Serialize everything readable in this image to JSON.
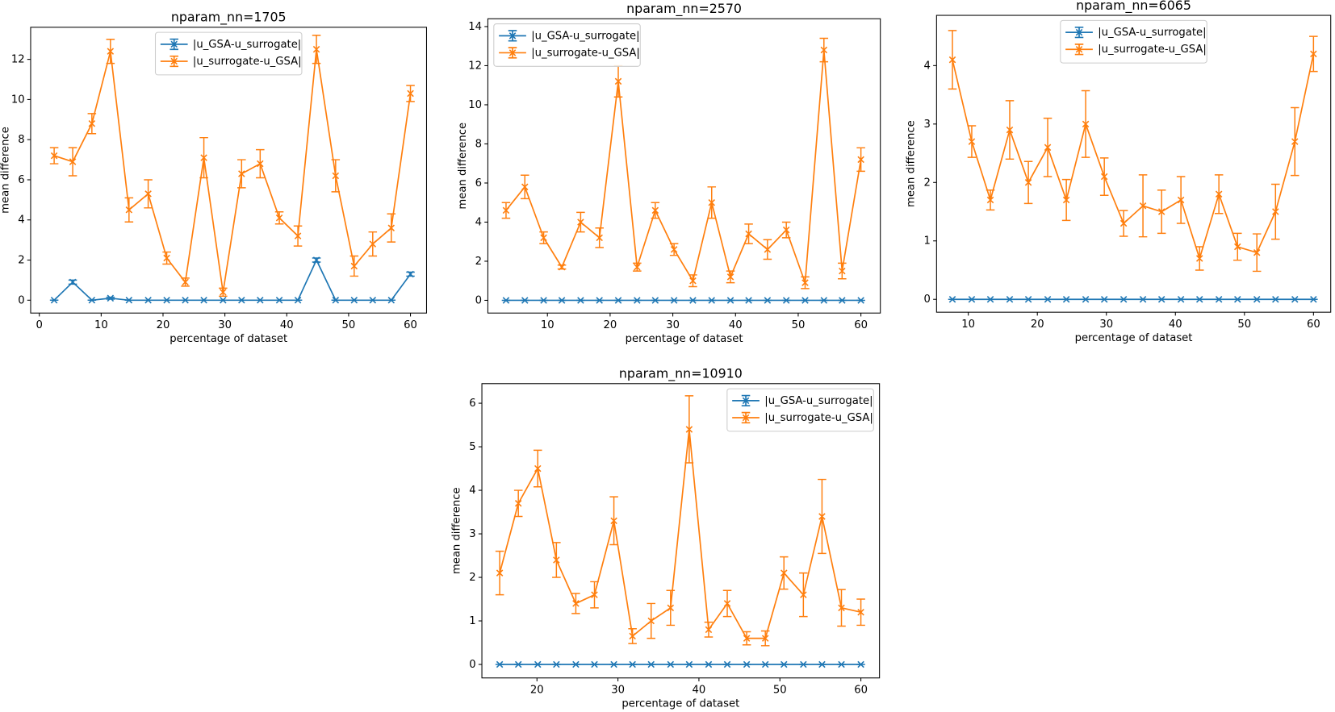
{
  "chart_data": [
    {
      "type": "line",
      "title": "nparam_nn=1705",
      "xlabel": "percentage of dataset",
      "ylabel": "mean difference",
      "x": [
        2.4,
        5.4,
        8.5,
        11.5,
        14.5,
        17.6,
        20.6,
        23.6,
        26.6,
        29.7,
        32.7,
        35.7,
        38.8,
        41.8,
        44.8,
        47.9,
        50.9,
        53.9,
        56.9,
        60.0
      ],
      "series": [
        {
          "name": "|u_GSA-u_surrogate|",
          "color": "#1f77b4",
          "values": [
            0,
            0.9,
            0,
            0.1,
            0,
            0,
            0,
            0,
            0,
            0,
            0,
            0,
            0,
            0,
            2.0,
            0,
            0,
            0,
            0,
            1.3
          ],
          "errors": [
            0,
            0.1,
            0,
            0.05,
            0,
            0,
            0,
            0,
            0,
            0,
            0,
            0,
            0,
            0,
            0.1,
            0,
            0,
            0,
            0,
            0.1
          ]
        },
        {
          "name": "|u_surrogate-u_GSA|",
          "color": "#ff7f0e",
          "values": [
            7.2,
            6.9,
            8.8,
            12.4,
            4.5,
            5.3,
            2.1,
            0.9,
            7.1,
            0.4,
            6.3,
            6.8,
            4.1,
            3.2,
            12.5,
            6.2,
            1.7,
            2.8,
            3.6,
            10.3
          ],
          "errors": [
            0.4,
            0.7,
            0.5,
            0.6,
            0.6,
            0.7,
            0.3,
            0.2,
            1.0,
            0.2,
            0.7,
            0.7,
            0.3,
            0.5,
            0.7,
            0.8,
            0.5,
            0.6,
            0.7,
            0.4
          ]
        }
      ],
      "xlim": [
        -1.4,
        62.6
      ],
      "ylim": [
        -0.64,
        13.6
      ],
      "xticks": [
        0,
        10,
        20,
        30,
        40,
        50,
        60
      ],
      "yticks": [
        0,
        2,
        4,
        6,
        8,
        10,
        12
      ],
      "legend": "upper center"
    },
    {
      "type": "line",
      "title": "nparam_nn=2570",
      "xlabel": "percentage of dataset",
      "ylabel": "mean difference",
      "x": [
        3.4,
        6.4,
        9.4,
        12.3,
        15.3,
        18.3,
        21.3,
        24.3,
        27.2,
        30.2,
        33.2,
        36.2,
        39.2,
        42.1,
        45.1,
        48.1,
        51.1,
        54.1,
        57.0,
        60.0
      ],
      "series": [
        {
          "name": "|u_GSA-u_surrogate|",
          "color": "#1f77b4",
          "values": [
            0,
            0,
            0,
            0,
            0,
            0,
            0,
            0,
            0,
            0,
            0,
            0,
            0,
            0,
            0,
            0,
            0,
            0,
            0,
            0
          ],
          "errors": [
            0,
            0,
            0,
            0,
            0,
            0,
            0,
            0,
            0,
            0,
            0,
            0,
            0,
            0,
            0,
            0,
            0,
            0,
            0,
            0
          ]
        },
        {
          "name": "|u_surrogate-u_GSA|",
          "color": "#ff7f0e",
          "values": [
            4.6,
            5.8,
            3.2,
            1.7,
            4.0,
            3.2,
            11.2,
            1.7,
            4.6,
            2.6,
            1.0,
            5.0,
            1.2,
            3.4,
            2.6,
            3.6,
            0.9,
            12.8,
            1.5,
            7.2
          ],
          "errors": [
            0.4,
            0.6,
            0.3,
            0.1,
            0.5,
            0.5,
            0.8,
            0.2,
            0.4,
            0.3,
            0.3,
            0.8,
            0.3,
            0.5,
            0.5,
            0.4,
            0.3,
            0.6,
            0.4,
            0.6
          ]
        }
      ],
      "xlim": [
        0.5,
        63.1
      ],
      "ylim": [
        -0.65,
        14.4
      ],
      "xticks": [
        10,
        20,
        30,
        40,
        50,
        60
      ],
      "yticks": [
        0,
        2,
        4,
        6,
        8,
        10,
        12,
        14
      ],
      "legend": "upper left"
    },
    {
      "type": "line",
      "title": "nparam_nn=6065",
      "xlabel": "percentage of dataset",
      "ylabel": "mean difference",
      "x": [
        7.7,
        10.5,
        13.2,
        16.0,
        18.7,
        21.5,
        24.2,
        27.0,
        29.7,
        32.5,
        35.3,
        38.0,
        40.8,
        43.5,
        46.3,
        49.0,
        51.8,
        54.5,
        57.3,
        60.0
      ],
      "series": [
        {
          "name": "|u_GSA-u_surrogate|",
          "color": "#1f77b4",
          "values": [
            0,
            0,
            0,
            0,
            0,
            0,
            0,
            0,
            0,
            0,
            0,
            0,
            0,
            0,
            0,
            0,
            0,
            0,
            0,
            0
          ],
          "errors": [
            0,
            0,
            0,
            0,
            0,
            0,
            0,
            0,
            0,
            0,
            0,
            0,
            0,
            0,
            0,
            0,
            0,
            0,
            0,
            0
          ]
        },
        {
          "name": "|u_surrogate-u_GSA|",
          "color": "#ff7f0e",
          "values": [
            4.1,
            2.7,
            1.7,
            2.9,
            2.0,
            2.6,
            1.7,
            3.0,
            2.1,
            1.3,
            1.6,
            1.5,
            1.7,
            0.7,
            1.8,
            0.9,
            0.8,
            1.5,
            2.7,
            4.2
          ],
          "errors": [
            0.5,
            0.27,
            0.17,
            0.5,
            0.36,
            0.5,
            0.35,
            0.57,
            0.32,
            0.22,
            0.53,
            0.37,
            0.4,
            0.2,
            0.33,
            0.23,
            0.32,
            0.47,
            0.58,
            0.3
          ]
        }
      ],
      "xlim": [
        5.4,
        62.5
      ],
      "ylim": [
        -0.22,
        4.86
      ],
      "xticks": [
        10,
        20,
        30,
        40,
        50,
        60
      ],
      "yticks": [
        0,
        1,
        2,
        3,
        4
      ],
      "legend": "upper center"
    },
    {
      "type": "line",
      "title": "nparam_nn=10910",
      "xlabel": "percentage of dataset",
      "ylabel": "mean difference",
      "x": [
        15.4,
        17.7,
        20.1,
        22.4,
        24.8,
        27.1,
        29.5,
        31.8,
        34.1,
        36.5,
        38.8,
        41.2,
        43.5,
        45.9,
        48.2,
        50.5,
        52.9,
        55.2,
        57.6,
        60.0
      ],
      "series": [
        {
          "name": "|u_GSA-u_surrogate|",
          "color": "#1f77b4",
          "values": [
            0,
            0,
            0,
            0,
            0,
            0,
            0,
            0,
            0,
            0,
            0,
            0,
            0,
            0,
            0,
            0,
            0,
            0,
            0,
            0
          ],
          "errors": [
            0,
            0,
            0,
            0,
            0,
            0,
            0,
            0,
            0,
            0,
            0,
            0,
            0,
            0,
            0,
            0,
            0,
            0,
            0,
            0
          ]
        },
        {
          "name": "|u_surrogate-u_GSA|",
          "color": "#ff7f0e",
          "values": [
            2.1,
            3.7,
            4.5,
            2.4,
            1.4,
            1.6,
            3.3,
            0.65,
            1.0,
            1.3,
            5.4,
            0.8,
            1.4,
            0.6,
            0.6,
            2.1,
            1.6,
            3.4,
            1.3,
            1.2
          ],
          "errors": [
            0.5,
            0.3,
            0.42,
            0.4,
            0.23,
            0.3,
            0.55,
            0.17,
            0.4,
            0.4,
            0.77,
            0.17,
            0.3,
            0.15,
            0.17,
            0.37,
            0.5,
            0.85,
            0.42,
            0.3
          ]
        }
      ],
      "xlim": [
        13.2,
        62.3
      ],
      "ylim": [
        -0.31,
        6.45
      ],
      "xticks": [
        20,
        30,
        40,
        50,
        60
      ],
      "yticks": [
        0,
        1,
        2,
        3,
        4,
        5,
        6
      ],
      "legend": "upper right"
    }
  ]
}
